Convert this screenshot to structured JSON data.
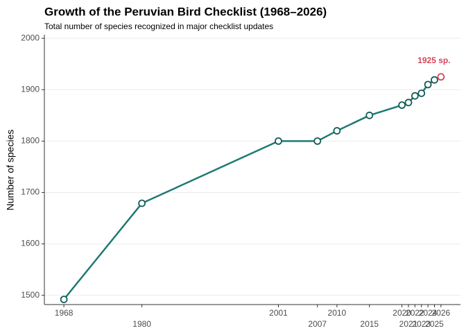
{
  "chart_data": {
    "type": "line",
    "title": "Growth of the Peruvian Bird Checklist (1968–2026)",
    "subtitle": "Total number of species recognized in major checklist updates",
    "y_label": "Number of species",
    "x": [
      1968,
      1980,
      2001,
      2007,
      2010,
      2015,
      2020,
      2021,
      2022,
      2023,
      2024,
      2025,
      2026
    ],
    "series": [
      {
        "color": "#1f7a73",
        "values": [
          1492,
          1679,
          1800,
          1800,
          1820,
          1850,
          1870,
          1875,
          1888,
          1893,
          1910,
          1919,
          1925
        ]
      }
    ],
    "highlight_color": "#d6455b",
    "annotations": [
      {
        "text": "1925 sp."
      }
    ],
    "xlim": [
      1965,
      2029
    ],
    "xticks": [
      1968,
      1980,
      2001,
      2007,
      2010,
      2015,
      2020,
      2021,
      2022,
      2023,
      2024,
      2025,
      2026
    ],
    "ylim": [
      1482,
      2007
    ],
    "yticks": [
      1500,
      1600,
      1700,
      1800,
      1900,
      2000
    ],
    "grid": true
  }
}
